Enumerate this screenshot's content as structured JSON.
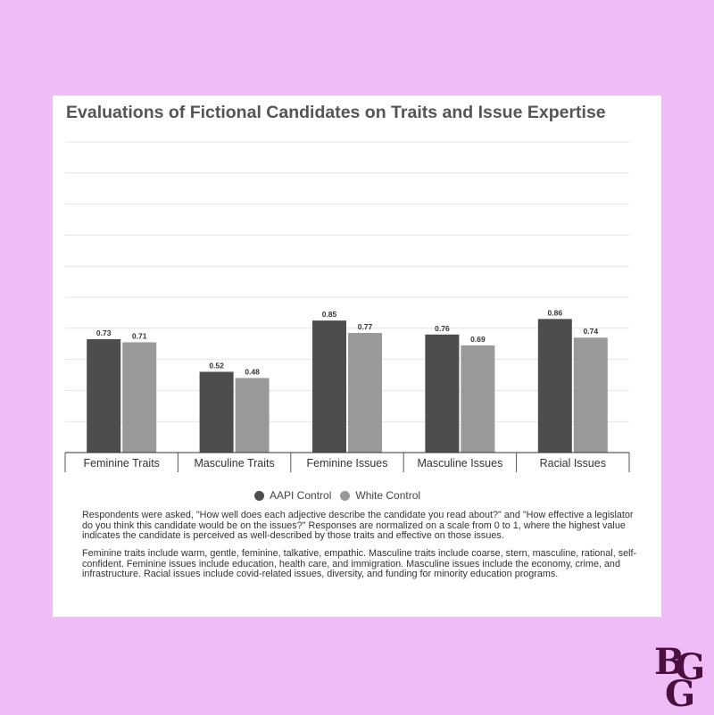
{
  "chart_data": {
    "type": "bar",
    "title": "Evaluations of Fictional Candidates on Traits and Issue Expertise",
    "categories": [
      "Feminine Traits",
      "Masculine Traits",
      "Feminine Issues",
      "Masculine Issues",
      "Racial Issues"
    ],
    "series": [
      {
        "name": "AAPI Control",
        "values": [
          0.73,
          0.52,
          0.85,
          0.76,
          0.86
        ],
        "labels": [
          "0.73",
          "0.52",
          "0.85",
          "0.76",
          "0.86"
        ],
        "color": "#4d4d4d"
      },
      {
        "name": "White Control",
        "values": [
          0.71,
          0.48,
          0.77,
          0.69,
          0.74
        ],
        "labels": [
          "0.71",
          "0.48",
          "0.77",
          "0.69",
          "0.74"
        ],
        "color": "#999999"
      }
    ],
    "ylim": [
      0,
      2
    ],
    "grid": true,
    "legend": "bottom-center"
  },
  "notes": [
    "Respondents were asked, \"How well does each adjective describe the candidate you read about?\" and \"How effective a legislator do you think this candidate would be on the issues?\" Responses are normalized on a scale from 0 to 1, where the highest value indicates the candidate is perceived as well-described by those traits and effective on those issues.",
    "Feminine traits include warm, gentle, feminine, talkative, empathic. Masculine traits include coarse, stern, masculine, rational, self-confident. Feminine issues include education, health care, and immigration. Masculine issues include the economy, crime, and infrastructure. Racial issues include covid-related issues, diversity, and funding for minority education programs."
  ],
  "logo": {
    "text": "BGG",
    "color": "#4a0f3f"
  }
}
